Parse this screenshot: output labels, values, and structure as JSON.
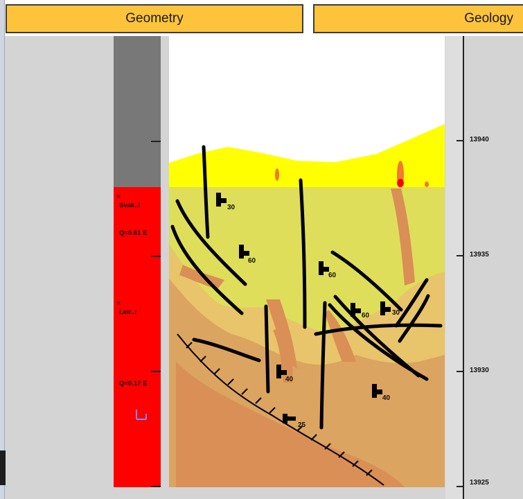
{
  "headers": {
    "geometry": "Geometry",
    "geology": "Geology"
  },
  "column": {
    "labels": [
      {
        "text": "Svak..!",
        "name": "label-svak"
      },
      {
        "text": "Q=0.61 E",
        "name": "label-q-061"
      },
      {
        "text": "Leir..!",
        "name": "label-leir"
      },
      {
        "text": "Q=0.17 E",
        "name": "label-q-017"
      }
    ],
    "marker": "×"
  },
  "scale": {
    "ticks": [
      "13940",
      "13935",
      "13930",
      "13925"
    ]
  },
  "dips": [
    "30",
    "60",
    "60",
    "60",
    "30",
    "40",
    "40",
    "25"
  ],
  "colors": {
    "header": "#fcc33b",
    "rock_gray": "#787878",
    "weak_zone_red": "#ff0000",
    "sediment_yellow": "#ffff00",
    "rock_olive": "#dede5a",
    "weathered_orange": "#e0985a"
  }
}
